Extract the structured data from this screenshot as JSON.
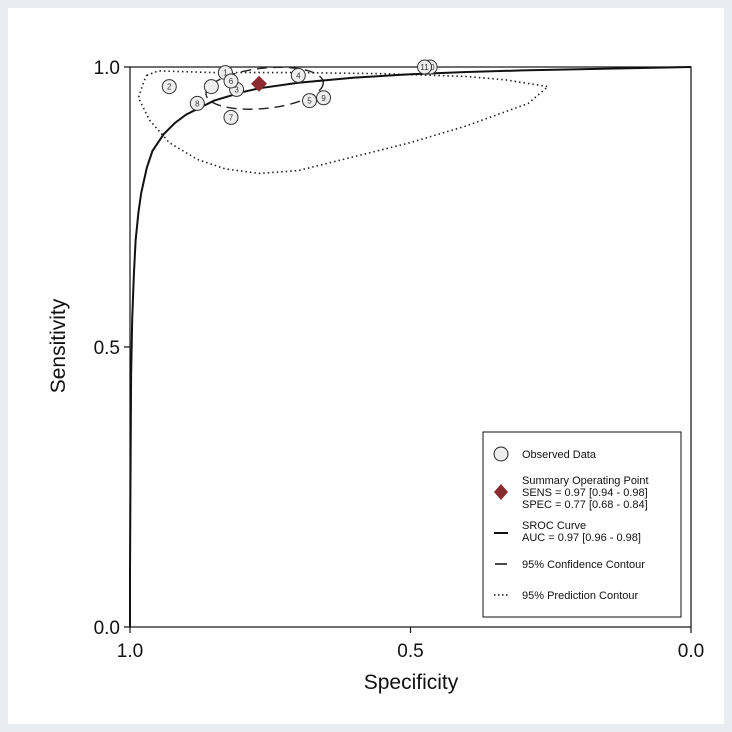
{
  "chart_data": {
    "type": "scatter",
    "title": "",
    "xlabel": "Specificity",
    "ylabel": "Sensitivity",
    "xlim": [
      1.0,
      0.0
    ],
    "ylim": [
      0.0,
      1.0
    ],
    "x_axis_reversed": true,
    "xticks": [
      "1.0",
      "0.5",
      "0.0"
    ],
    "yticks": [
      "0.0",
      "0.5",
      "1.0"
    ],
    "grid": false,
    "legend_position": "bottom-right",
    "colors": {
      "summary_point": "#8b2a30",
      "lines": "#111111",
      "points_fill": "#eeeeee"
    },
    "series": [
      {
        "name": "Observed Data",
        "marker": "circle",
        "points": [
          {
            "label": "1",
            "spec": 0.83,
            "sens": 0.99
          },
          {
            "label": "2",
            "spec": 0.93,
            "sens": 0.965
          },
          {
            "label": "3",
            "spec": 0.81,
            "sens": 0.96
          },
          {
            "label": "4",
            "spec": 0.7,
            "sens": 0.985
          },
          {
            "label": "5",
            "spec": 0.68,
            "sens": 0.94
          },
          {
            "label": "6",
            "spec": 0.82,
            "sens": 0.975
          },
          {
            "label": "7",
            "spec": 0.82,
            "sens": 0.91
          },
          {
            "label": "8",
            "spec": 0.88,
            "sens": 0.935
          },
          {
            "label": "9",
            "spec": 0.655,
            "sens": 0.945
          },
          {
            "label": "10",
            "spec": 0.465,
            "sens": 1.0
          },
          {
            "label": "11",
            "spec": 0.475,
            "sens": 1.0
          },
          {
            "label": "",
            "spec": 0.855,
            "sens": 0.965
          }
        ]
      },
      {
        "name": "Summary Operating Point",
        "marker": "diamond",
        "points": [
          {
            "spec": 0.77,
            "sens": 0.97
          }
        ],
        "text_lines": [
          "SENS = 0.97 [0.94 - 0.98]",
          "SPEC = 0.77 [0.68 - 0.84]"
        ]
      },
      {
        "name": "SROC Curve",
        "line": "solid",
        "auc_text": "AUC = 0.97 [0.96 - 0.98]",
        "points": [
          [
            1.0,
            0.0
          ],
          [
            1.0,
            0.1
          ],
          [
            0.999,
            0.3
          ],
          [
            0.998,
            0.45
          ],
          [
            0.996,
            0.55
          ],
          [
            0.993,
            0.63
          ],
          [
            0.99,
            0.69
          ],
          [
            0.985,
            0.74
          ],
          [
            0.98,
            0.775
          ],
          [
            0.97,
            0.82
          ],
          [
            0.96,
            0.85
          ],
          [
            0.94,
            0.88
          ],
          [
            0.92,
            0.9
          ],
          [
            0.9,
            0.915
          ],
          [
            0.85,
            0.94
          ],
          [
            0.8,
            0.955
          ],
          [
            0.77,
            0.962
          ],
          [
            0.7,
            0.972
          ],
          [
            0.6,
            0.981
          ],
          [
            0.5,
            0.987
          ],
          [
            0.4,
            0.991
          ],
          [
            0.3,
            0.994
          ],
          [
            0.2,
            0.996
          ],
          [
            0.1,
            0.998
          ],
          [
            0.0,
            1.0
          ]
        ]
      },
      {
        "name": "95% Confidence Contour",
        "line": "dashed",
        "center": {
          "spec": 0.76,
          "sens": 0.962
        },
        "radius": {
          "spec": 0.105,
          "sens": 0.036
        },
        "angle_deg": 6
      },
      {
        "name": "95% Prediction Contour",
        "line": "dotted",
        "points": [
          [
            0.97,
            0.985
          ],
          [
            0.95,
            0.993
          ],
          [
            0.85,
            0.99
          ],
          [
            0.7,
            0.99
          ],
          [
            0.55,
            0.988
          ],
          [
            0.4,
            0.983
          ],
          [
            0.33,
            0.977
          ],
          [
            0.255,
            0.965
          ],
          [
            0.29,
            0.935
          ],
          [
            0.4,
            0.895
          ],
          [
            0.5,
            0.865
          ],
          [
            0.6,
            0.84
          ],
          [
            0.7,
            0.815
          ],
          [
            0.77,
            0.81
          ],
          [
            0.83,
            0.818
          ],
          [
            0.88,
            0.835
          ],
          [
            0.93,
            0.865
          ],
          [
            0.965,
            0.905
          ],
          [
            0.985,
            0.945
          ],
          [
            0.975,
            0.975
          ]
        ]
      }
    ]
  },
  "legend": [
    {
      "key": "observed",
      "label": "Observed Data"
    },
    {
      "key": "summary",
      "label": "Summary Operating Point",
      "lines": [
        "SENS = 0.97 [0.94 - 0.98]",
        "SPEC = 0.77 [0.68 - 0.84]"
      ]
    },
    {
      "key": "sroc",
      "label": "SROC Curve",
      "lines": [
        "AUC = 0.97 [0.96 - 0.98]"
      ]
    },
    {
      "key": "confidence",
      "label": "95% Confidence Contour"
    },
    {
      "key": "prediction",
      "label": "95% Prediction Contour"
    }
  ]
}
